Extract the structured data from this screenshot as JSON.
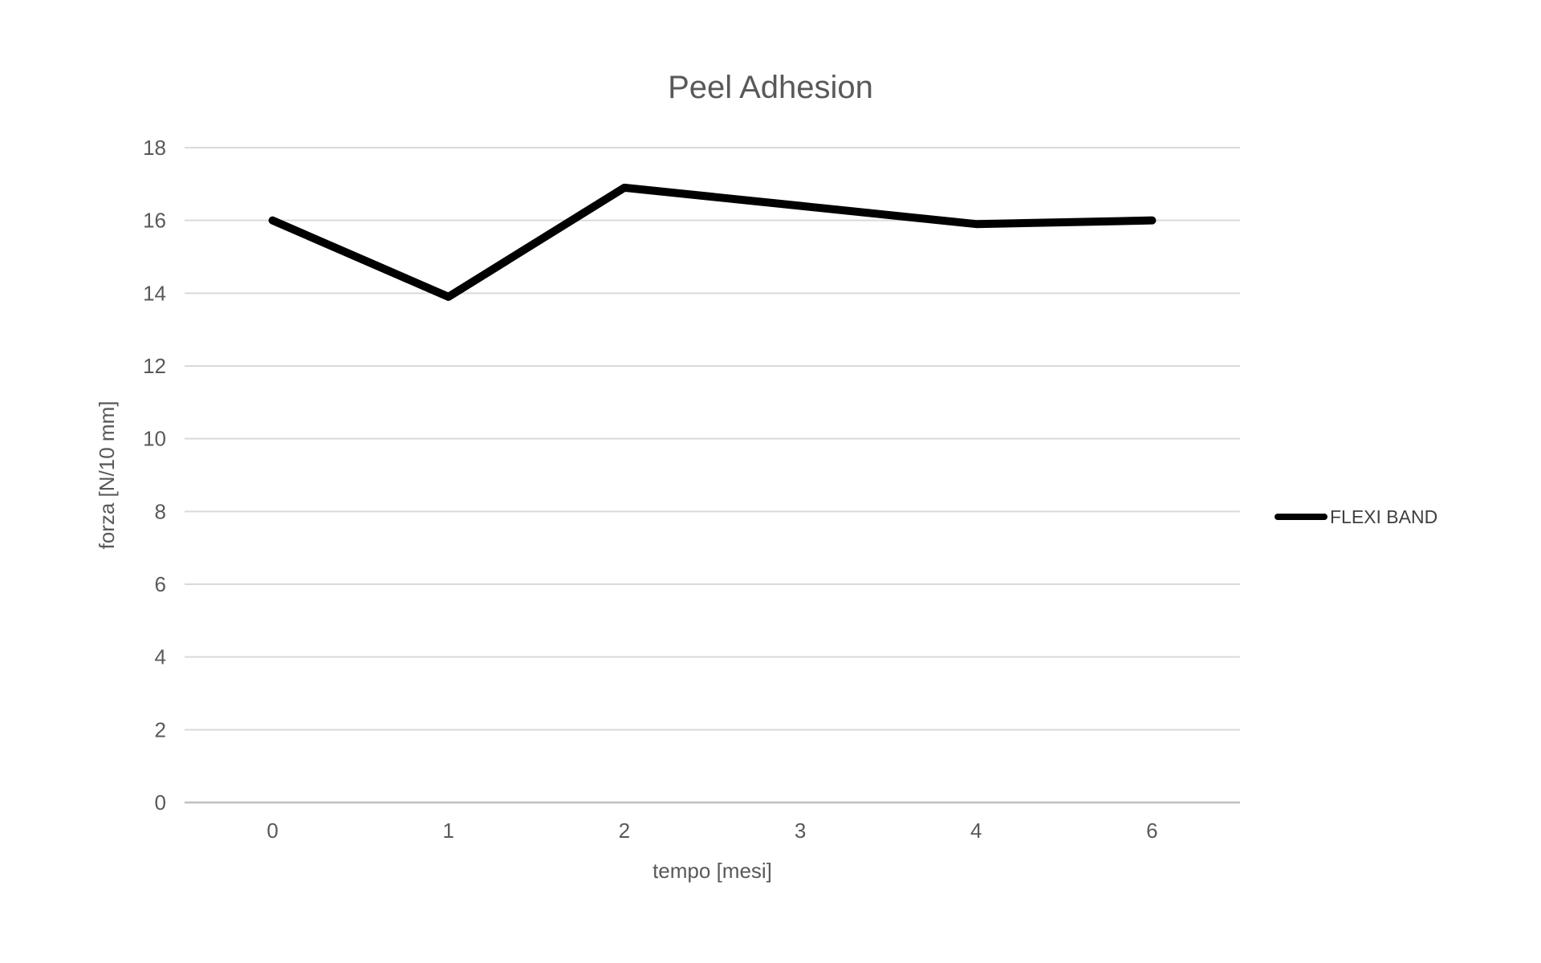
{
  "chart_data": {
    "type": "line",
    "title": "Peel Adhesion",
    "xlabel": "tempo [mesi]",
    "ylabel": "forza [N/10 mm]",
    "categories": [
      "0",
      "1",
      "2",
      "3",
      "4",
      "6"
    ],
    "series": [
      {
        "name": "FLEXI BAND",
        "color": "#000000",
        "values": [
          16,
          13.9,
          16.9,
          16.4,
          15.9,
          16
        ]
      }
    ],
    "ylim": [
      0,
      18
    ],
    "yticks": [
      0,
      2,
      4,
      6,
      8,
      10,
      12,
      14,
      16,
      18
    ],
    "grid": "horizontal",
    "legend_position": "right"
  },
  "colors": {
    "background": "#ffffff",
    "gridline": "#d9d9d9",
    "axis_line": "#bfbfbf",
    "text": "#595959",
    "legend_text": "#404040",
    "series": "#000000"
  }
}
